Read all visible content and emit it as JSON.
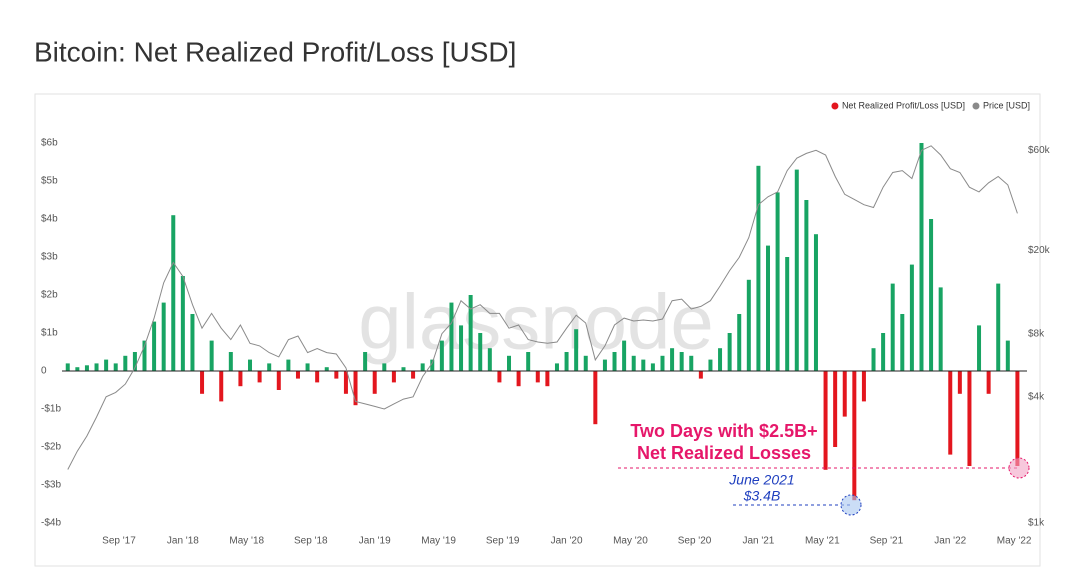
{
  "chart_data": {
    "type": "bar-line",
    "title": "Bitcoin: Net Realized Profit/Loss [USD]",
    "watermark": "glassnode",
    "annotations": [
      "Two Days with $2.5B+",
      "Net Realized Losses",
      "June 2021",
      "$3.4B"
    ],
    "legend": "top-right",
    "x": [
      2017.4,
      2017.45,
      2017.5,
      2017.55,
      2017.6,
      2017.65,
      2017.7,
      2017.75,
      2017.8,
      2017.85,
      2017.9,
      2017.95,
      2018.0,
      2018.05,
      2018.1,
      2018.15,
      2018.2,
      2018.25,
      2018.3,
      2018.35,
      2018.4,
      2018.45,
      2018.5,
      2018.55,
      2018.6,
      2018.65,
      2018.7,
      2018.75,
      2018.8,
      2018.85,
      2018.9,
      2018.95,
      2019.0,
      2019.05,
      2019.1,
      2019.15,
      2019.2,
      2019.25,
      2019.3,
      2019.35,
      2019.4,
      2019.45,
      2019.5,
      2019.55,
      2019.6,
      2019.65,
      2019.7,
      2019.75,
      2019.8,
      2019.85,
      2019.9,
      2019.95,
      2020.0,
      2020.05,
      2020.1,
      2020.15,
      2020.2,
      2020.25,
      2020.3,
      2020.35,
      2020.4,
      2020.45,
      2020.5,
      2020.55,
      2020.6,
      2020.65,
      2020.7,
      2020.75,
      2020.8,
      2020.85,
      2020.9,
      2020.95,
      2021.0,
      2021.05,
      2021.1,
      2021.15,
      2021.2,
      2021.25,
      2021.3,
      2021.35,
      2021.4,
      2021.45,
      2021.5,
      2021.55,
      2021.6,
      2021.65,
      2021.7,
      2021.75,
      2021.8,
      2021.85,
      2021.9,
      2021.95,
      2022.0,
      2022.05,
      2022.1,
      2022.15,
      2022.2,
      2022.25,
      2022.3,
      2022.35
    ],
    "xlim": [
      2017.37,
      2022.4
    ],
    "xticks": [
      {
        "value": 2017.667,
        "label": "Sep '17"
      },
      {
        "value": 2018.0,
        "label": "Jan '18"
      },
      {
        "value": 2018.333,
        "label": "May '18"
      },
      {
        "value": 2018.667,
        "label": "Sep '18"
      },
      {
        "value": 2019.0,
        "label": "Jan '19"
      },
      {
        "value": 2019.333,
        "label": "May '19"
      },
      {
        "value": 2019.667,
        "label": "Sep '19"
      },
      {
        "value": 2020.0,
        "label": "Jan '20"
      },
      {
        "value": 2020.333,
        "label": "May '20"
      },
      {
        "value": 2020.667,
        "label": "Sep '20"
      },
      {
        "value": 2021.0,
        "label": "Jan '21"
      },
      {
        "value": 2021.333,
        "label": "May '21"
      },
      {
        "value": 2021.667,
        "label": "Sep '21"
      },
      {
        "value": 2022.0,
        "label": "Jan '22"
      },
      {
        "value": 2022.333,
        "label": "May '22"
      }
    ],
    "ylim": [
      -4,
      6
    ],
    "yticks": [
      {
        "value": -4,
        "label": "-$4b"
      },
      {
        "value": -3,
        "label": "-$3b"
      },
      {
        "value": -2,
        "label": "-$2b"
      },
      {
        "value": -1,
        "label": "-$1b"
      },
      0,
      {
        "value": 1,
        "label": "$1b"
      },
      {
        "value": 2,
        "label": "$2b"
      },
      {
        "value": 3,
        "label": "$3b"
      },
      {
        "value": 4,
        "label": "$4b"
      },
      {
        "value": 5,
        "label": "$5b"
      },
      {
        "value": 6,
        "label": "$6b"
      }
    ],
    "y2lim": [
      1000,
      65000
    ],
    "y2log": true,
    "y2ticks": [
      {
        "value": 1000,
        "label": "$1k"
      },
      {
        "value": 4000,
        "label": "$4k"
      },
      {
        "value": 8000,
        "label": "$8k"
      },
      {
        "value": 20000,
        "label": "$20k"
      },
      {
        "value": 60000,
        "label": "$60k"
      }
    ],
    "series": [
      {
        "name": "Net Realized Profit/Loss [USD]",
        "color": "#e3161e",
        "positive_color": "#18a463",
        "values": [
          0.2,
          0.1,
          0.15,
          0.2,
          0.3,
          0.2,
          0.4,
          0.5,
          0.8,
          1.3,
          1.8,
          4.1,
          2.5,
          1.5,
          -0.6,
          0.8,
          -0.8,
          0.5,
          -0.4,
          0.3,
          -0.3,
          0.2,
          -0.5,
          0.3,
          -0.2,
          0.2,
          -0.3,
          0.1,
          -0.2,
          -0.6,
          -0.9,
          0.5,
          -0.6,
          0.2,
          -0.3,
          0.1,
          -0.2,
          0.2,
          0.3,
          0.8,
          1.8,
          1.2,
          2.0,
          1.0,
          0.6,
          -0.3,
          0.4,
          -0.4,
          0.5,
          -0.3,
          -0.4,
          0.2,
          0.5,
          1.1,
          0.4,
          -1.4,
          0.3,
          0.5,
          0.8,
          0.4,
          0.3,
          0.2,
          0.4,
          0.6,
          0.5,
          0.4,
          -0.2,
          0.3,
          0.6,
          1.0,
          1.5,
          2.4,
          5.4,
          3.3,
          4.7,
          3.0,
          5.3,
          4.5,
          3.6,
          -2.6,
          -2.0,
          -1.2,
          -3.4,
          -0.8,
          0.6,
          1.0,
          2.3,
          1.5,
          2.8,
          6.0,
          4.0,
          2.2,
          -2.2,
          -0.6,
          -2.5,
          1.2,
          -0.6,
          2.3,
          0.8,
          -2.5
        ]
      },
      {
        "name": "Price [USD]",
        "color": "#8a8a8a",
        "axis": "y2",
        "values": [
          1800,
          2200,
          2600,
          3200,
          4000,
          4200,
          4600,
          5500,
          7000,
          9500,
          14000,
          17500,
          15000,
          11000,
          8500,
          10000,
          8500,
          7500,
          8800,
          7200,
          7000,
          6500,
          6200,
          7500,
          7800,
          6500,
          6800,
          6500,
          6400,
          5500,
          3800,
          3700,
          3600,
          3500,
          3700,
          3900,
          4000,
          5000,
          5800,
          8000,
          9000,
          11500,
          10500,
          11000,
          10000,
          10000,
          8500,
          8800,
          7500,
          7300,
          7200,
          7300,
          8500,
          9800,
          9000,
          6000,
          7000,
          8800,
          9500,
          9200,
          9300,
          9200,
          9400,
          11500,
          11700,
          10500,
          10800,
          11500,
          13500,
          16000,
          18500,
          23000,
          33000,
          36000,
          38000,
          48000,
          55000,
          58000,
          60000,
          57000,
          45000,
          37000,
          35000,
          33000,
          32000,
          40000,
          47000,
          48000,
          44000,
          60000,
          63000,
          57000,
          49000,
          47000,
          40000,
          38000,
          42000,
          45000,
          41000,
          30000
        ]
      }
    ]
  }
}
